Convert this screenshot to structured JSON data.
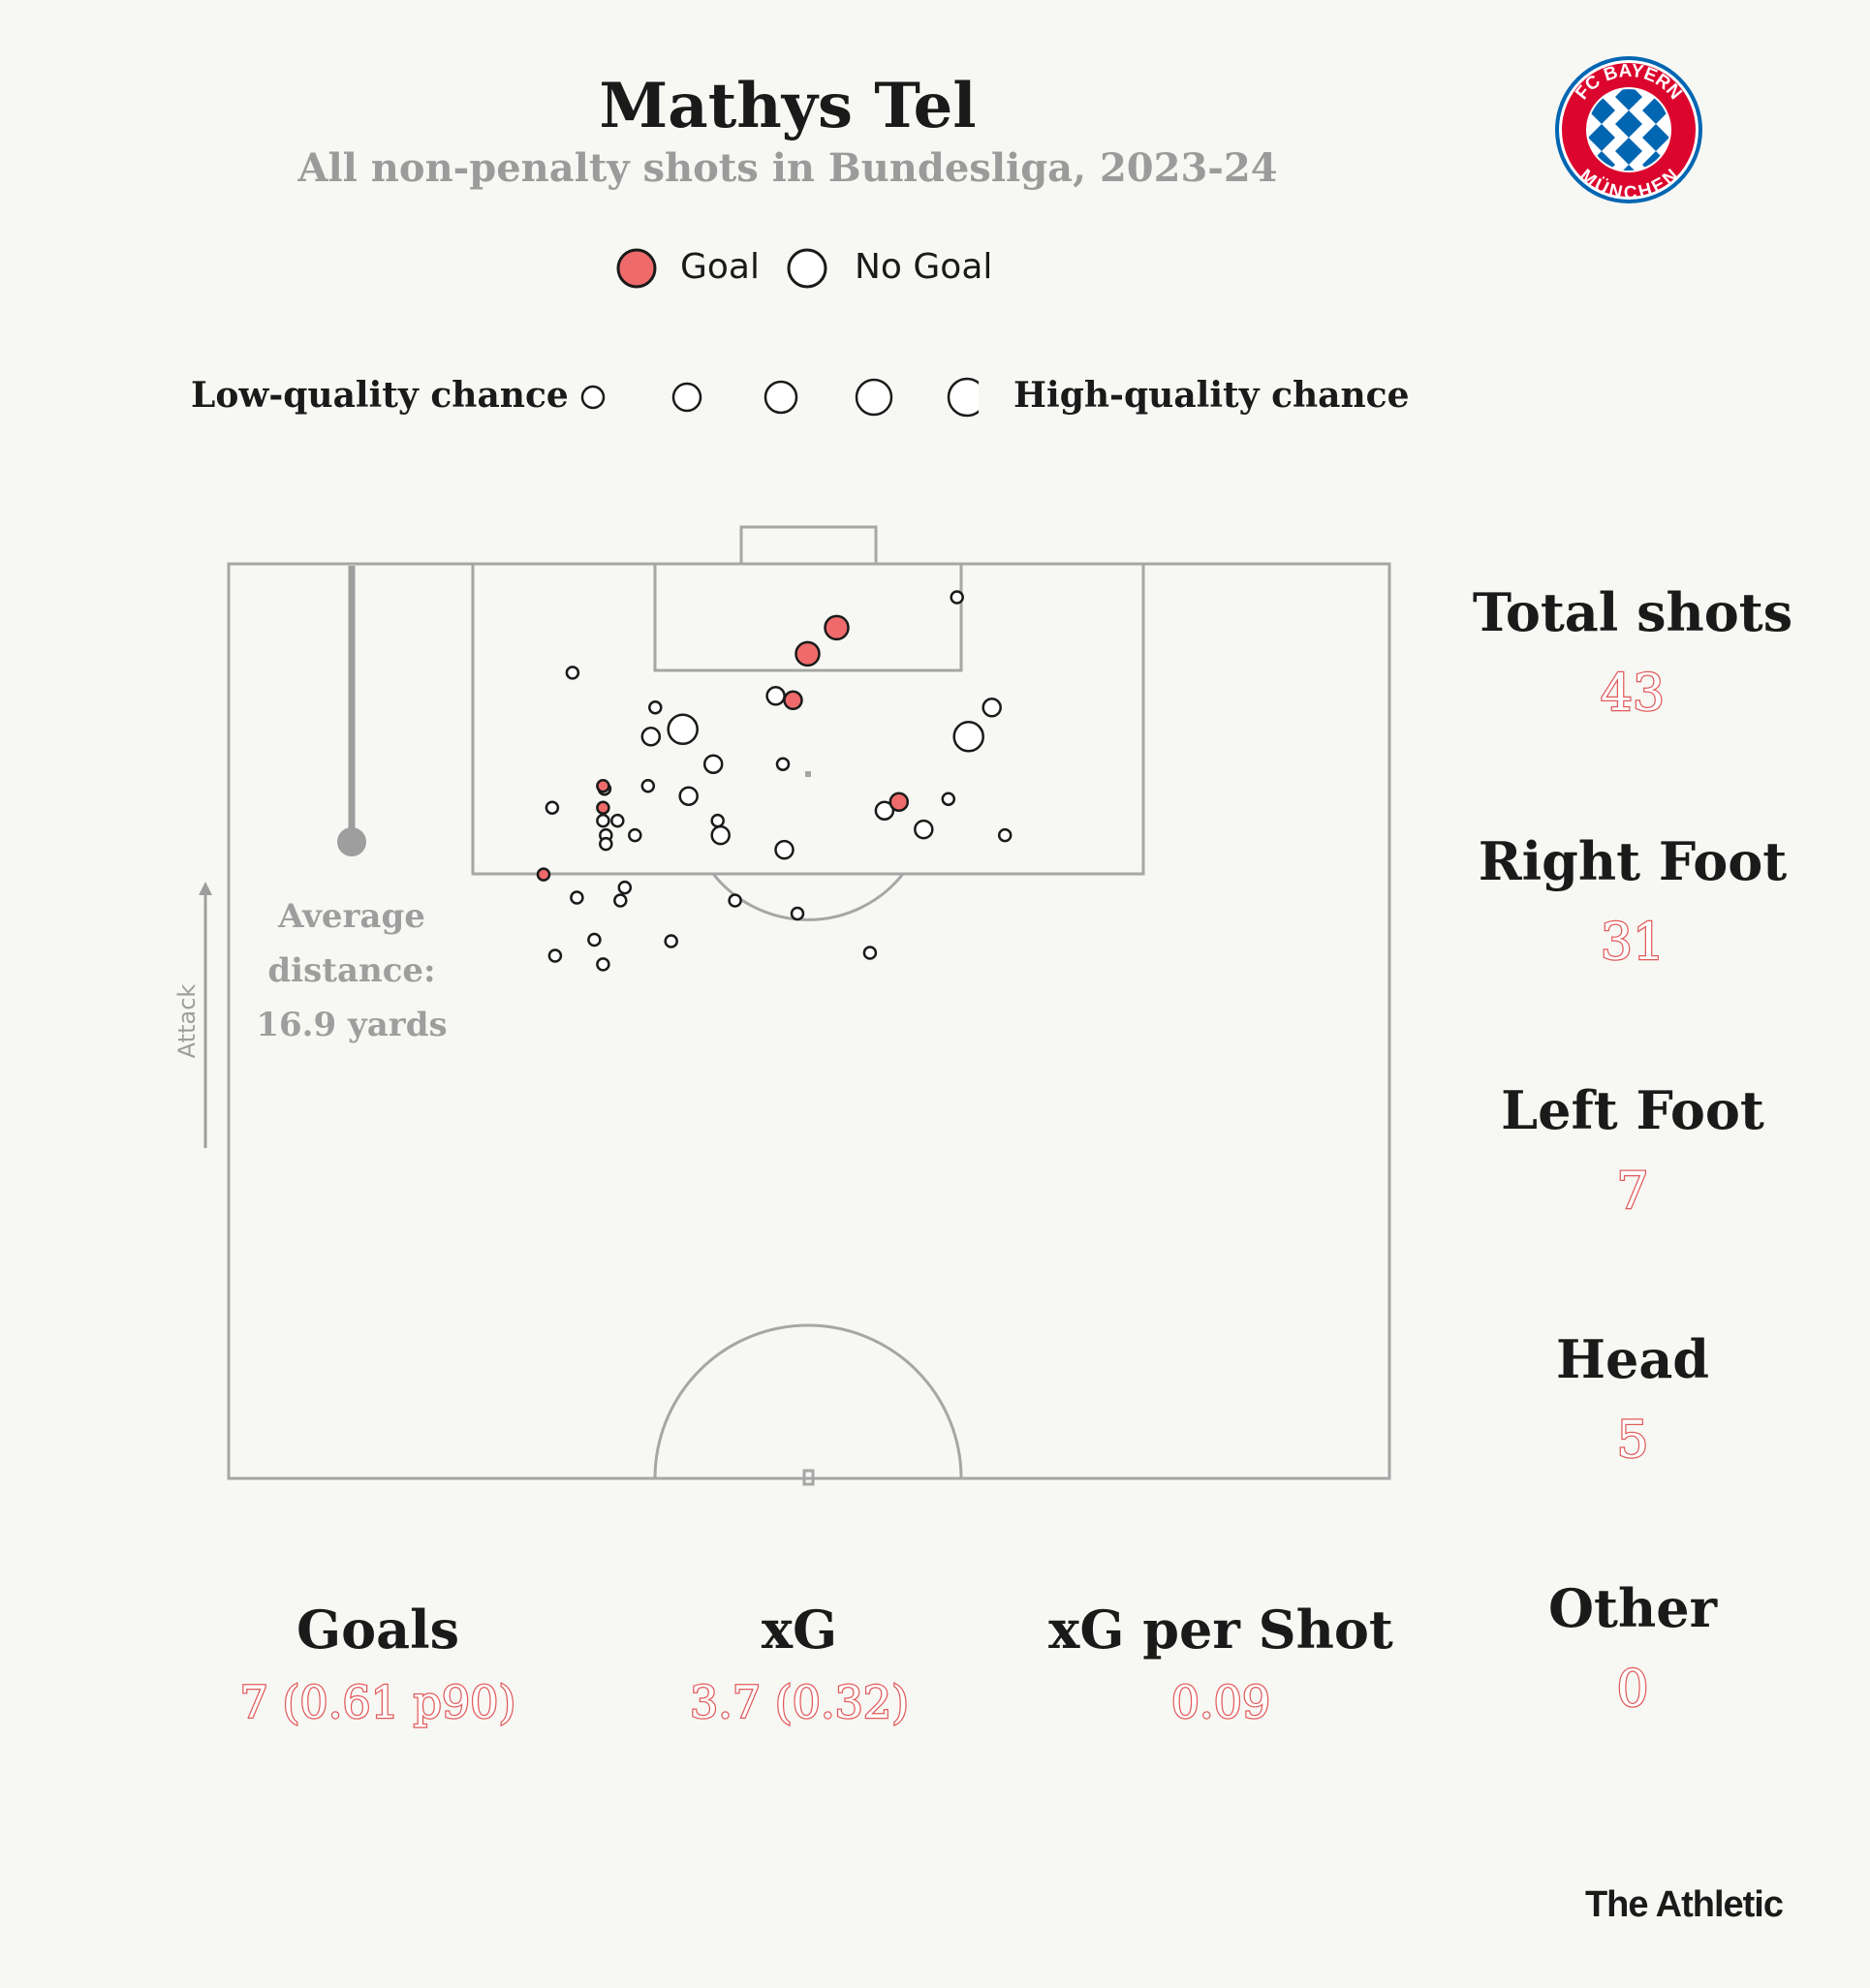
{
  "header": {
    "title": "Mathys Tel",
    "subtitle": "All non-penalty shots in Bundesliga, 2023-24"
  },
  "logo": {
    "text": "FC BAYERN MÜNCHEN",
    "colors": {
      "red": "#dc052d",
      "blue": "#0066b2"
    }
  },
  "legend": {
    "goal_label": "Goal",
    "no_goal_label": "No Goal",
    "low_label": "Low-quality chance",
    "high_label": "High-quality chance"
  },
  "average": {
    "line1": "Average",
    "line2": "distance:",
    "line3": "16.9 yards"
  },
  "attack_label": "Attack",
  "right_stats": [
    {
      "label": "Total shots",
      "value": "43"
    },
    {
      "label": "Right Foot",
      "value": "31"
    },
    {
      "label": "Left Foot",
      "value": "7"
    },
    {
      "label": "Head",
      "value": "5"
    },
    {
      "label": "Other",
      "value": "0"
    }
  ],
  "bottom_stats": [
    {
      "label": "Goals",
      "value": "7 (0.61 p90)"
    },
    {
      "label": "xG",
      "value": "3.7 (0.32)"
    },
    {
      "label": "xG per Shot",
      "value": "0.09"
    }
  ],
  "brand": "The Athletic",
  "colors": {
    "goal": "#ef6b6b",
    "value_outline": "#e05a5a",
    "pitch_line": "#a6a6a6"
  },
  "chart_data": {
    "type": "scatter",
    "x_unit": "yards across the pitch width (0-80)",
    "y_unit": "yards from the goal line",
    "xlim": [
      0,
      80
    ],
    "ylim": [
      0,
      63
    ],
    "average_distance_yards": 16.9,
    "shots": [
      {
        "x": 41.9,
        "y": 4.4,
        "quality": 3,
        "goal": true
      },
      {
        "x": 39.9,
        "y": 6.2,
        "quality": 3,
        "goal": true
      },
      {
        "x": 38.9,
        "y": 9.4,
        "quality": 2,
        "goal": true
      },
      {
        "x": 46.2,
        "y": 16.4,
        "quality": 2,
        "goal": true
      },
      {
        "x": 25.8,
        "y": 15.3,
        "quality": 1,
        "goal": true
      },
      {
        "x": 25.8,
        "y": 16.8,
        "quality": 1,
        "goal": true
      },
      {
        "x": 21.7,
        "y": 21.4,
        "quality": 1,
        "goal": true
      },
      {
        "x": 50.2,
        "y": 2.3,
        "quality": 1,
        "goal": false
      },
      {
        "x": 23.7,
        "y": 7.5,
        "quality": 1,
        "goal": false
      },
      {
        "x": 37.7,
        "y": 9.1,
        "quality": 2,
        "goal": false
      },
      {
        "x": 29.4,
        "y": 9.9,
        "quality": 1,
        "goal": false
      },
      {
        "x": 52.6,
        "y": 9.9,
        "quality": 2,
        "goal": false
      },
      {
        "x": 31.3,
        "y": 11.4,
        "quality": 4,
        "goal": false
      },
      {
        "x": 51.0,
        "y": 11.9,
        "quality": 4,
        "goal": false
      },
      {
        "x": 29.1,
        "y": 11.9,
        "quality": 2,
        "goal": false
      },
      {
        "x": 33.4,
        "y": 13.8,
        "quality": 2,
        "goal": false
      },
      {
        "x": 38.2,
        "y": 13.8,
        "quality": 1,
        "goal": false
      },
      {
        "x": 28.9,
        "y": 15.3,
        "quality": 1,
        "goal": false
      },
      {
        "x": 25.9,
        "y": 15.5,
        "quality": 1,
        "goal": false
      },
      {
        "x": 31.7,
        "y": 16.0,
        "quality": 2,
        "goal": false
      },
      {
        "x": 49.6,
        "y": 16.2,
        "quality": 1,
        "goal": false
      },
      {
        "x": 22.3,
        "y": 16.8,
        "quality": 1,
        "goal": false
      },
      {
        "x": 45.2,
        "y": 17.0,
        "quality": 2,
        "goal": false
      },
      {
        "x": 25.8,
        "y": 17.7,
        "quality": 1,
        "goal": false
      },
      {
        "x": 26.8,
        "y": 17.7,
        "quality": 1,
        "goal": false
      },
      {
        "x": 33.7,
        "y": 17.7,
        "quality": 1,
        "goal": false
      },
      {
        "x": 47.9,
        "y": 18.3,
        "quality": 2,
        "goal": false
      },
      {
        "x": 26.0,
        "y": 18.7,
        "quality": 1,
        "goal": false
      },
      {
        "x": 28.0,
        "y": 18.7,
        "quality": 1,
        "goal": false
      },
      {
        "x": 33.9,
        "y": 18.7,
        "quality": 2,
        "goal": false
      },
      {
        "x": 53.5,
        "y": 18.7,
        "quality": 1,
        "goal": false
      },
      {
        "x": 26.0,
        "y": 19.3,
        "quality": 1,
        "goal": false
      },
      {
        "x": 38.3,
        "y": 19.7,
        "quality": 2,
        "goal": false
      },
      {
        "x": 27.3,
        "y": 22.3,
        "quality": 1,
        "goal": false
      },
      {
        "x": 24.0,
        "y": 23.0,
        "quality": 1,
        "goal": false
      },
      {
        "x": 27.0,
        "y": 23.2,
        "quality": 1,
        "goal": false
      },
      {
        "x": 34.9,
        "y": 23.2,
        "quality": 1,
        "goal": false
      },
      {
        "x": 39.2,
        "y": 24.1,
        "quality": 1,
        "goal": false
      },
      {
        "x": 25.2,
        "y": 25.9,
        "quality": 1,
        "goal": false
      },
      {
        "x": 30.5,
        "y": 26.0,
        "quality": 1,
        "goal": false
      },
      {
        "x": 44.2,
        "y": 26.8,
        "quality": 1,
        "goal": false
      },
      {
        "x": 22.5,
        "y": 27.0,
        "quality": 1,
        "goal": false
      },
      {
        "x": 25.8,
        "y": 27.6,
        "quality": 1,
        "goal": false
      }
    ]
  }
}
